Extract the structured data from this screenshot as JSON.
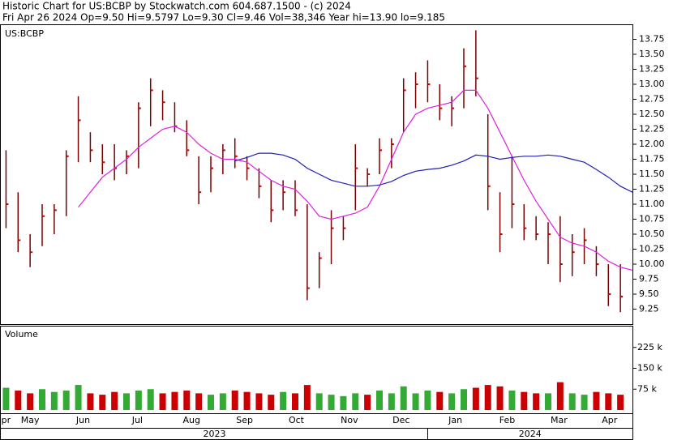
{
  "chart_data": {
    "type": "ohlc",
    "title": "Historic Chart for US:BCBP by Stockwatch.com 604.687.1500 - (c) 2024",
    "subtitle": "Fri Apr 26 2024  Op=9.50  Hi=9.5797  Lo=9.30  Cl=9.46  Vol=38,346  Year hi=13.90  lo=9.185",
    "symbol": "US:BCBP",
    "bar_color": "#7a0000",
    "close_color": "#cc0000",
    "x": [
      0.5,
      1.5,
      2.5,
      3.5,
      4.5,
      5.5,
      6.5,
      7.5,
      8.5,
      9.5,
      10.5,
      11.5,
      12.5,
      13.5,
      14.5,
      15.5,
      16.5,
      17.5,
      18.5,
      19.5,
      20.5,
      21.5,
      22.5,
      23.5,
      24.5,
      25.5,
      26.5,
      27.5,
      28.5,
      29.5,
      30.5,
      31.5,
      32.5,
      33.5,
      34.5,
      35.5,
      36.5,
      37.5,
      38.5,
      39.5,
      40.5,
      41.5,
      42.5,
      43.5,
      44.5,
      45.5,
      46.5,
      47.5,
      48.5,
      49.5,
      50.5,
      51.5
    ],
    "high": [
      11.9,
      11.2,
      10.5,
      11.0,
      11.0,
      11.9,
      12.8,
      12.2,
      12.0,
      12.0,
      11.9,
      12.7,
      13.1,
      12.9,
      12.7,
      12.4,
      11.8,
      11.8,
      12.0,
      12.1,
      11.8,
      11.6,
      11.4,
      11.4,
      11.4,
      11.0,
      10.2,
      10.9,
      10.8,
      12.0,
      11.6,
      12.1,
      12.1,
      13.1,
      13.2,
      13.4,
      13.0,
      12.8,
      13.6,
      13.9,
      12.5,
      11.2,
      11.8,
      11.0,
      10.8,
      10.7,
      10.8,
      10.5,
      10.6,
      10.3,
      10.0,
      10.0
    ],
    "low": [
      10.6,
      10.2,
      9.95,
      10.3,
      10.5,
      10.8,
      11.7,
      11.7,
      11.5,
      11.4,
      11.5,
      11.6,
      12.3,
      12.4,
      12.2,
      11.8,
      11.0,
      11.2,
      11.5,
      11.6,
      11.4,
      11.1,
      10.7,
      10.9,
      10.8,
      9.4,
      9.6,
      10.0,
      10.4,
      10.9,
      11.3,
      11.5,
      11.6,
      12.2,
      12.6,
      12.7,
      12.4,
      12.3,
      12.6,
      12.8,
      10.9,
      10.2,
      10.6,
      10.4,
      10.4,
      10.0,
      9.7,
      9.8,
      10.0,
      9.8,
      9.3,
      9.2
    ],
    "close": [
      11.0,
      10.4,
      10.2,
      10.8,
      10.9,
      11.8,
      12.4,
      11.9,
      11.7,
      11.6,
      11.8,
      12.6,
      12.9,
      12.7,
      12.3,
      11.9,
      11.2,
      11.6,
      11.9,
      11.8,
      11.6,
      11.3,
      10.9,
      11.2,
      10.9,
      9.6,
      10.1,
      10.6,
      10.6,
      11.6,
      11.5,
      11.9,
      12.0,
      12.9,
      13.0,
      13.0,
      12.6,
      12.6,
      13.3,
      13.1,
      11.3,
      10.5,
      11.0,
      10.6,
      10.5,
      10.5,
      10.0,
      10.2,
      10.4,
      10.0,
      9.5,
      9.46
    ],
    "series": [
      {
        "color": "#e020e0",
        "x": [
          6.5,
          7.5,
          8.5,
          9.5,
          10.5,
          11.5,
          12.5,
          13.5,
          14.5,
          15.5,
          16.5,
          17.5,
          18.5,
          19.5,
          20.5,
          21.5,
          22.5,
          23.5,
          24.5,
          25.5,
          26.5,
          27.5,
          28.5,
          29.5,
          30.5,
          31.5,
          32.5,
          33.5,
          34.5,
          35.5,
          36.5,
          37.5,
          38.5,
          39.5,
          40.5,
          41.5,
          42.5,
          43.5,
          44.5,
          45.5,
          46.5,
          47.5,
          48.5,
          49.5,
          50.5,
          51.5,
          52.5
        ],
        "values": [
          10.95,
          11.2,
          11.45,
          11.6,
          11.75,
          11.95,
          12.1,
          12.25,
          12.3,
          12.2,
          12.0,
          11.85,
          11.75,
          11.75,
          11.7,
          11.55,
          11.4,
          11.3,
          11.25,
          11.05,
          10.8,
          10.75,
          10.8,
          10.85,
          10.95,
          11.3,
          11.75,
          12.2,
          12.5,
          12.6,
          12.65,
          12.7,
          12.9,
          12.9,
          12.6,
          12.2,
          11.8,
          11.4,
          11.05,
          10.75,
          10.45,
          10.35,
          10.3,
          10.2,
          10.05,
          9.95,
          9.9
        ]
      },
      {
        "color": "#2020b0",
        "x": [
          19.5,
          20.5,
          21.5,
          22.5,
          23.5,
          24.5,
          25.5,
          26.5,
          27.5,
          28.5,
          29.5,
          30.5,
          31.5,
          32.5,
          33.5,
          34.5,
          35.5,
          36.5,
          37.5,
          38.5,
          39.5,
          40.5,
          41.5,
          42.5,
          43.5,
          44.5,
          45.5,
          46.5,
          47.5,
          48.5,
          49.5,
          50.5,
          51.5,
          52.5
        ],
        "values": [
          11.72,
          11.78,
          11.85,
          11.85,
          11.82,
          11.75,
          11.6,
          11.5,
          11.4,
          11.35,
          11.3,
          11.3,
          11.32,
          11.38,
          11.48,
          11.55,
          11.58,
          11.6,
          11.65,
          11.72,
          11.82,
          11.8,
          11.75,
          11.78,
          11.8,
          11.8,
          11.82,
          11.8,
          11.75,
          11.7,
          11.58,
          11.45,
          11.3,
          11.2
        ]
      }
    ],
    "xlim": [
      0,
      52.5
    ],
    "ylim": [
      9,
      14
    ],
    "yticks": [
      9.25,
      {
        "value": 9.5,
        "label": "9.50"
      },
      9.75,
      {
        "value": 10,
        "label": "10.00"
      },
      10.25,
      {
        "value": 10.5,
        "label": "10.50"
      },
      10.75,
      {
        "value": 11,
        "label": "11.00"
      },
      11.25,
      {
        "value": 11.5,
        "label": "11.50"
      },
      11.75,
      {
        "value": 12,
        "label": "12.00"
      },
      12.25,
      {
        "value": 12.5,
        "label": "12.50"
      },
      12.75,
      {
        "value": 13,
        "label": "13.00"
      },
      13.25,
      {
        "value": 13.5,
        "label": "13.50"
      },
      13.75
    ],
    "xticks": [
      {
        "value": 0.5,
        "label": "pr"
      },
      {
        "value": 2.5,
        "label": "May"
      },
      {
        "value": 6.9,
        "label": "Jun"
      },
      {
        "value": 11.4,
        "label": "Jul"
      },
      {
        "value": 15.9,
        "label": "Aug"
      },
      {
        "value": 20.3,
        "label": "Sep"
      },
      {
        "value": 24.6,
        "label": "Oct"
      },
      {
        "value": 29.0,
        "label": "Nov"
      },
      {
        "value": 33.3,
        "label": "Dec"
      },
      {
        "value": 37.8,
        "label": "Jan"
      },
      {
        "value": 42.1,
        "label": "Feb"
      },
      {
        "value": 46.4,
        "label": "Mar"
      },
      {
        "value": 50.6,
        "label": "Apr"
      }
    ],
    "year_labels": [
      {
        "value": 17.8,
        "label": "2023"
      },
      {
        "value": 44,
        "label": "2024"
      }
    ],
    "volume": {
      "title": "Volume",
      "up_color": "#33aa33",
      "down_color": "#cc0000",
      "values": [
        80000,
        70000,
        60000,
        75000,
        65000,
        70000,
        90000,
        60000,
        55000,
        65000,
        60000,
        70000,
        75000,
        60000,
        65000,
        70000,
        60000,
        55000,
        60000,
        70000,
        65000,
        60000,
        55000,
        65000,
        60000,
        90000,
        60000,
        55000,
        50000,
        60000,
        55000,
        70000,
        60000,
        85000,
        60000,
        70000,
        65000,
        60000,
        75000,
        80000,
        90000,
        85000,
        70000,
        65000,
        60000,
        60000,
        100000,
        60000,
        55000,
        65000,
        60000,
        55000
      ],
      "ylim": [
        0,
        300000
      ],
      "yticks": [
        {
          "value": 75000,
          "label": "75 k"
        },
        {
          "value": 150000,
          "label": "150 k"
        },
        {
          "value": 225000,
          "label": "225 k"
        }
      ]
    }
  }
}
